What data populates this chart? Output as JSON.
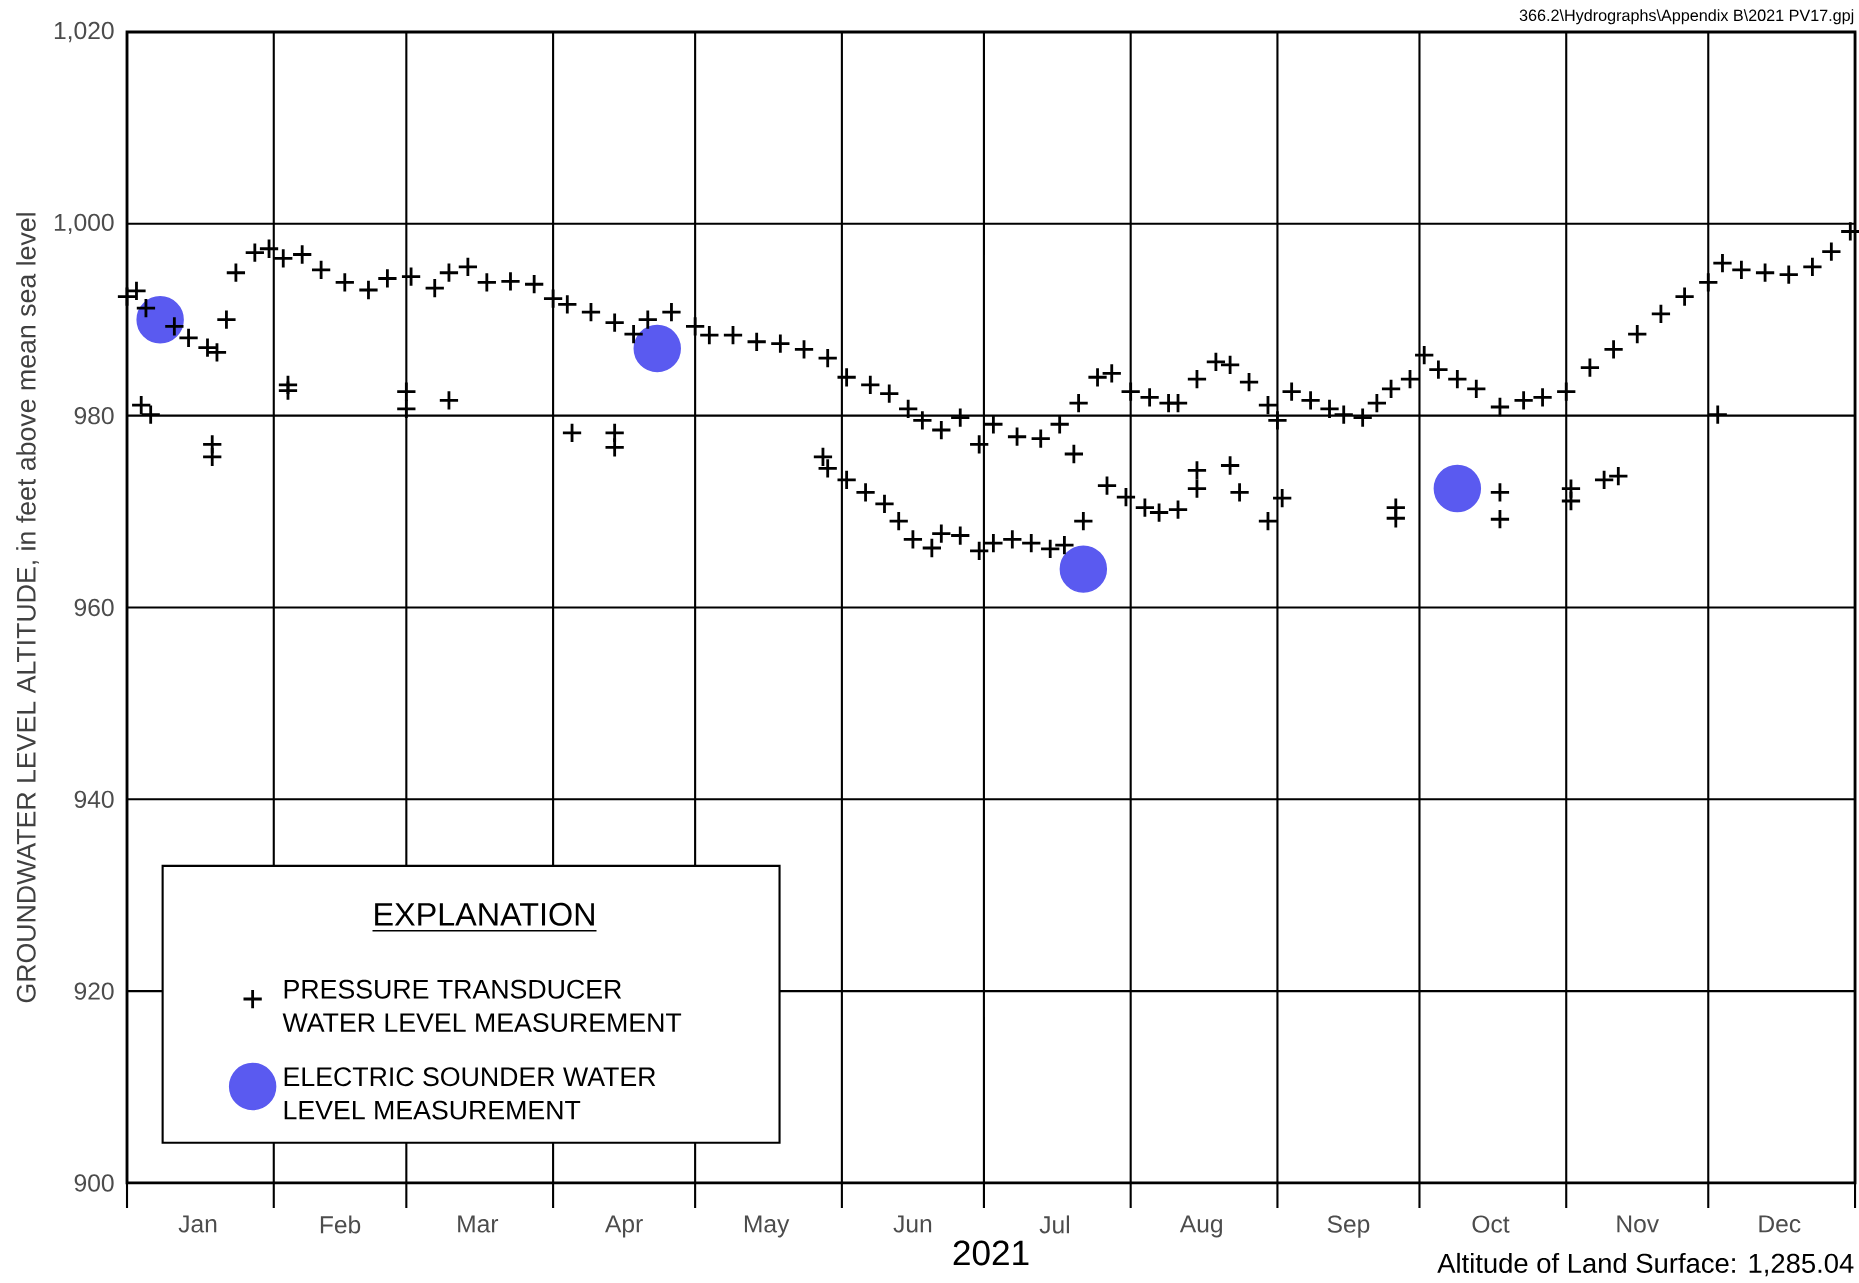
{
  "chart_data": {
    "type": "scatter",
    "ylabel": "GROUNDWATER LEVEL ALTITUDE, in feet above mean sea level",
    "xlabel": "2021",
    "legend_title": "EXPLANATION",
    "legend": "bottom left",
    "grid": true,
    "annotations": [
      "366.2\\Hydrographs\\Appendix B\\2021 PV17.gpj",
      "Altitude of Land Surface: 1,285.04"
    ],
    "xlim": [
      "2021-01-01",
      "2022-01-01"
    ],
    "ylim": [
      900,
      1020
    ],
    "xticks": [
      {
        "value": "2021-01-01",
        "label": null
      },
      {
        "value": "2021-02-01",
        "label": null
      },
      {
        "value": "2021-03-01",
        "label": null
      },
      {
        "value": "2021-04-01",
        "label": null
      },
      {
        "value": "2021-05-01",
        "label": null
      },
      {
        "value": "2021-06-01",
        "label": null
      },
      {
        "value": "2021-07-01",
        "label": null
      },
      {
        "value": "2021-08-01",
        "label": null
      },
      {
        "value": "2021-09-01",
        "label": null
      },
      {
        "value": "2021-10-01",
        "label": null
      },
      {
        "value": "2021-11-01",
        "label": null
      },
      {
        "value": "2021-12-01",
        "label": null
      },
      {
        "value": "2022-01-01",
        "label": null
      },
      {
        "value": "2021-01-16",
        "label": "Jan"
      },
      {
        "value": "2021-02-15",
        "label": "Feb"
      },
      {
        "value": "2021-03-16",
        "label": "Mar"
      },
      {
        "value": "2021-04-16",
        "label": "Apr"
      },
      {
        "value": "2021-05-16",
        "label": "May"
      },
      {
        "value": "2021-06-16",
        "label": "Jun"
      },
      {
        "value": "2021-07-16",
        "label": "Jul"
      },
      {
        "value": "2021-08-16",
        "label": "Aug"
      },
      {
        "value": "2021-09-16",
        "label": "Sep"
      },
      {
        "value": "2021-10-16",
        "label": "Oct"
      },
      {
        "value": "2021-11-16",
        "label": "Nov"
      },
      {
        "value": "2021-12-16",
        "label": "Dec"
      }
    ],
    "yticks": [
      900,
      920,
      940,
      960,
      980,
      {
        "value": 1000,
        "label": "1,000"
      },
      {
        "value": 1020,
        "label": "1,020"
      }
    ],
    "series": [
      {
        "name": "PRESSURE TRANSDUCER WATER LEVEL MEASUREMENT",
        "color": "#000000",
        "marker": "cross",
        "x": [
          "2021-01-01",
          "2021-01-03",
          "2021-01-05",
          "2021-01-11",
          "2021-01-14",
          "2021-01-18",
          "2021-01-20",
          "2021-01-22",
          "2021-01-24",
          "2021-01-28",
          "2021-01-31",
          "2021-02-03",
          "2021-02-07",
          "2021-02-11",
          "2021-02-16",
          "2021-02-21",
          "2021-02-25",
          "2021-03-02",
          "2021-03-07",
          "2021-03-10",
          "2021-03-14",
          "2021-03-18",
          "2021-03-23",
          "2021-03-28",
          "2021-04-01",
          "2021-04-04",
          "2021-04-09",
          "2021-04-14",
          "2021-04-18",
          "2021-04-21",
          "2021-04-26",
          "2021-05-01",
          "2021-05-04",
          "2021-05-09",
          "2021-05-14",
          "2021-05-19",
          "2021-05-24",
          "2021-05-29",
          "2021-06-02",
          "2021-06-07",
          "2021-06-11",
          "2021-06-15",
          "2021-06-18",
          "2021-06-22",
          "2021-06-26",
          "2021-06-30",
          "2021-07-03",
          "2021-07-08",
          "2021-07-13",
          "2021-07-17",
          "2021-07-20",
          "2021-07-21",
          "2021-07-25",
          "2021-07-28",
          "2021-08-01",
          "2021-08-05",
          "2021-08-09",
          "2021-08-11",
          "2021-08-15",
          "2021-08-19",
          "2021-08-22",
          "2021-08-26",
          "2021-08-30",
          "2021-09-01",
          "2021-09-04",
          "2021-09-08",
          "2021-09-12",
          "2021-09-15",
          "2021-09-19",
          "2021-09-22",
          "2021-09-25",
          "2021-09-29",
          "2021-10-02",
          "2021-10-05",
          "2021-10-09",
          "2021-10-13",
          "2021-10-18",
          "2021-10-23",
          "2021-10-27",
          "2021-11-01",
          "2021-11-06",
          "2021-11-11",
          "2021-11-16",
          "2021-11-21",
          "2021-11-26",
          "2021-12-01",
          "2021-12-04",
          "2021-12-08",
          "2021-12-13",
          "2021-12-18",
          "2021-12-23",
          "2021-12-27",
          "2021-12-31",
          "2021-05-28",
          "2021-05-29",
          "2021-06-02",
          "2021-06-06",
          "2021-06-10",
          "2021-06-13",
          "2021-06-16",
          "2021-06-20",
          "2021-06-22",
          "2021-06-26",
          "2021-06-30",
          "2021-07-03",
          "2021-07-07",
          "2021-07-11",
          "2021-07-15",
          "2021-07-18",
          "2021-07-22",
          "2021-07-27",
          "2021-07-31",
          "2021-08-04",
          "2021-08-07",
          "2021-08-11",
          "2021-01-04",
          "2021-01-06",
          "2021-01-19",
          "2021-01-19",
          "2021-02-04",
          "2021-02-04",
          "2021-03-01",
          "2021-03-01",
          "2021-03-10",
          "2021-04-05",
          "2021-04-14",
          "2021-04-14",
          "2021-08-15",
          "2021-08-15",
          "2021-08-22",
          "2021-08-24",
          "2021-08-30",
          "2021-09-02",
          "2021-09-26",
          "2021-09-26",
          "2021-10-18",
          "2021-10-18",
          "2021-11-02",
          "2021-11-02",
          "2021-11-09",
          "2021-11-12",
          "2021-12-03"
        ],
        "values": [
          992.4,
          993.0,
          991.2,
          989.3,
          988.1,
          987.1,
          986.6,
          990.0,
          994.9,
          997.0,
          997.4,
          996.4,
          996.8,
          995.2,
          993.9,
          993.1,
          994.3,
          994.5,
          993.3,
          994.9,
          995.5,
          993.9,
          994.0,
          993.7,
          992.2,
          991.6,
          990.8,
          989.7,
          988.5,
          990.0,
          990.8,
          989.3,
          988.4,
          988.4,
          987.7,
          987.5,
          986.9,
          986.0,
          984.0,
          983.2,
          982.3,
          980.7,
          979.5,
          978.5,
          979.8,
          977.0,
          979.1,
          977.8,
          977.6,
          979.1,
          976.0,
          981.3,
          984.0,
          984.4,
          982.5,
          981.9,
          981.3,
          981.3,
          983.8,
          985.6,
          985.3,
          983.5,
          981.1,
          979.5,
          982.5,
          981.6,
          980.7,
          980.1,
          979.8,
          981.3,
          982.8,
          983.8,
          986.3,
          984.8,
          983.8,
          982.8,
          980.9,
          981.6,
          981.9,
          982.5,
          985.0,
          986.9,
          988.5,
          990.6,
          992.4,
          993.9,
          995.9,
          995.2,
          994.9,
          994.7,
          995.5,
          997.1,
          999.2,
          975.7,
          974.5,
          973.3,
          972.0,
          970.8,
          969.0,
          967.1,
          966.2,
          967.7,
          967.5,
          965.9,
          966.7,
          967.1,
          966.7,
          966.1,
          966.5,
          969.0,
          972.7,
          971.5,
          970.4,
          969.9,
          970.2,
          981.1,
          980.1,
          977.0,
          975.7,
          983.2,
          982.6,
          982.5,
          980.7,
          981.6,
          978.2,
          978.2,
          976.7,
          974.3,
          972.4,
          974.8,
          972.0,
          969.0,
          971.4,
          970.4,
          969.3,
          972.0,
          969.2,
          972.4,
          971.1,
          973.3,
          973.7,
          980.1
        ]
      },
      {
        "name": "ELECTRIC SOUNDER WATER LEVEL MEASUREMENT",
        "color": "#5a5af0",
        "marker": "circle",
        "x": [
          "2021-01-08",
          "2021-04-23",
          "2021-07-22",
          "2021-10-09"
        ],
        "values": [
          990.0,
          987.0,
          964.0,
          972.4
        ]
      }
    ]
  }
}
